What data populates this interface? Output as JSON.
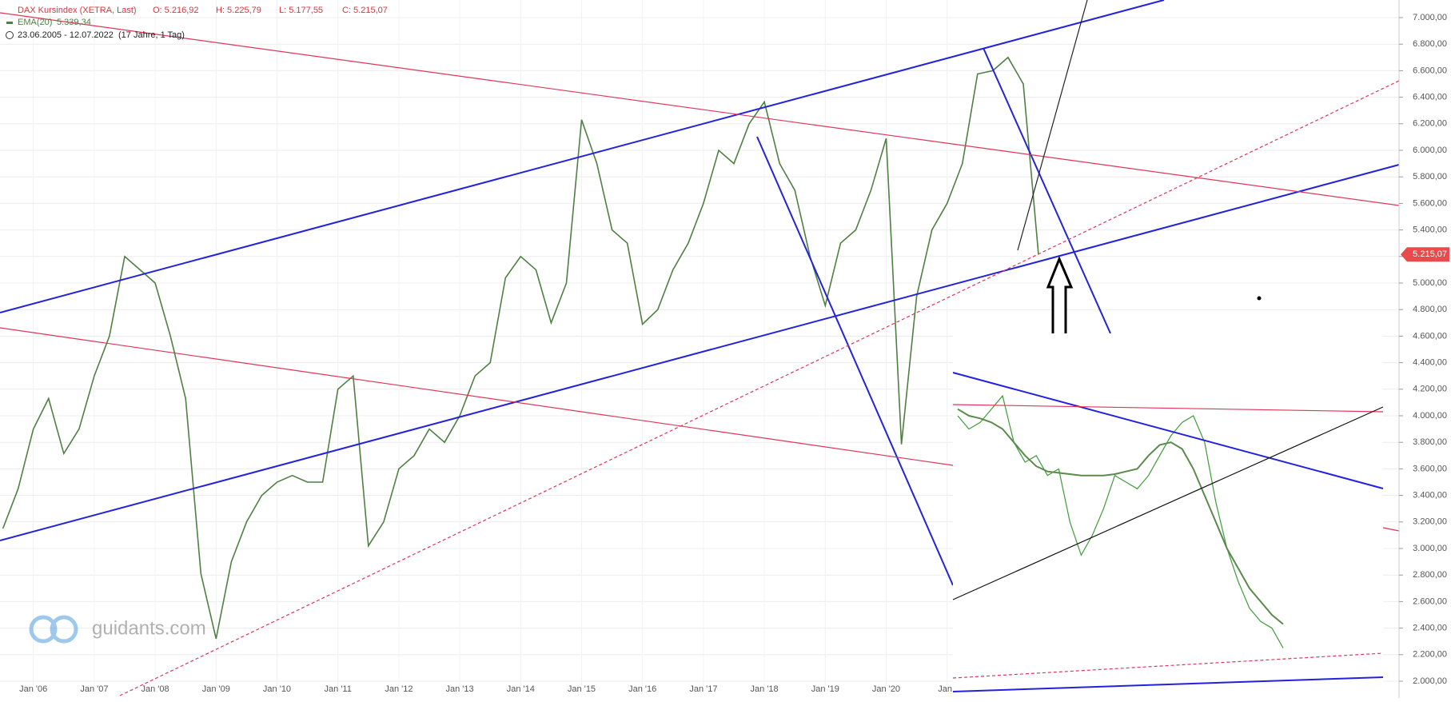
{
  "header": {
    "title": "DAX Kursindex (XETRA, Last)",
    "open": "O: 5.216,92",
    "high": "H: 5.225,79",
    "low": "L: 5.177,55",
    "close": "C: 5.215,07",
    "ema_name": "EMA(20)",
    "ema_value": "5.339,34",
    "range": "23.06.2005 - 12.07.2022",
    "span": "(17 Jahre, 1 Tag)"
  },
  "watermark": "guidants.com",
  "price_tag": {
    "value": 5215.07,
    "label": "5.215,07"
  },
  "chart_data": {
    "type": "line",
    "categories": [
      null,
      null,
      "Jan '06",
      null,
      null,
      null,
      "Jan '07",
      null,
      null,
      null,
      "Jan '08",
      null,
      null,
      null,
      "Jan '09",
      null,
      null,
      null,
      "Jan '10",
      null,
      null,
      null,
      "Jan '11",
      null,
      null,
      null,
      "Jan '12",
      null,
      null,
      null,
      "Jan '13",
      null,
      null,
      null,
      "Jan '14",
      null,
      null,
      null,
      "Jan '15",
      null,
      null,
      null,
      "Jan '16",
      null,
      null,
      null,
      "Jan '17",
      null,
      null,
      null,
      "Jan '18",
      null,
      null,
      null,
      "Jan '19",
      null,
      null,
      null,
      "Jan '20",
      null,
      null,
      null,
      "Jan '",
      null,
      null,
      null,
      null,
      null,
      null
    ],
    "series": [
      {
        "name": "DAX Kursindex (XETRA, Last)",
        "color": "#4f7f43",
        "values": [
          3150,
          3450,
          3900,
          4130,
          3715,
          3900,
          4300,
          4600,
          5200,
          5100,
          5000,
          4600,
          4130,
          2810,
          2320,
          2900,
          3200,
          3400,
          3500,
          3550,
          3500,
          3500,
          4200,
          4300,
          3020,
          3200,
          3600,
          3700,
          3900,
          3800,
          4000,
          4300,
          4400,
          5040,
          5200,
          5100,
          4700,
          5000,
          6230,
          5900,
          5400,
          5300,
          4690,
          4800,
          5100,
          5300,
          5600,
          6000,
          5900,
          6200,
          6365,
          5900,
          5700,
          5200,
          4830,
          5300,
          5400,
          5700,
          6090,
          3785,
          4900,
          5400,
          5600,
          5900,
          6575,
          6600,
          6700,
          6500,
          5215
        ]
      }
    ],
    "ylim": [
      2000,
      7000
    ],
    "yticks": [
      {
        "value": 7000,
        "label": "7.000,00"
      },
      {
        "value": 6800,
        "label": "6.800,00"
      },
      {
        "value": 6600,
        "label": "6.600,00"
      },
      {
        "value": 6400,
        "label": "6.400,00"
      },
      {
        "value": 6200,
        "label": "6.200,00"
      },
      {
        "value": 6000,
        "label": "6.000,00"
      },
      {
        "value": 5800,
        "label": "5.800,00"
      },
      {
        "value": 5600,
        "label": "5.600,00"
      },
      {
        "value": 5400,
        "label": "5.400,00"
      },
      {
        "value": 5200,
        "label": "5.200,00"
      },
      {
        "value": 5000,
        "label": "5.000,00"
      },
      {
        "value": 4800,
        "label": "4.800,00"
      },
      {
        "value": 4600,
        "label": "4.600,00"
      },
      {
        "value": 4400,
        "label": "4.400,00"
      },
      {
        "value": 4200,
        "label": "4.200,00"
      },
      {
        "value": 4000,
        "label": "4.000,00"
      },
      {
        "value": 3800,
        "label": "3.800,00"
      },
      {
        "value": 3600,
        "label": "3.600,00"
      },
      {
        "value": 3400,
        "label": "3.400,00"
      },
      {
        "value": 3200,
        "label": "3.200,00"
      },
      {
        "value": 3000,
        "label": "3.000,00"
      },
      {
        "value": 2800,
        "label": "2.800,00"
      },
      {
        "value": 2600,
        "label": "2.600,00"
      },
      {
        "value": 2400,
        "label": "2.400,00"
      },
      {
        "value": 2200,
        "label": "2.200,00"
      },
      {
        "value": 2000,
        "label": "2.000,00"
      }
    ],
    "grid": true
  },
  "inset": {
    "series": [
      {
        "color": "#3f9a3a",
        "values": [
          4000,
          3900,
          3950,
          4050,
          4150,
          3800,
          3650,
          3700,
          3550,
          3600,
          3200,
          2950,
          3100,
          3300,
          3550,
          3500,
          3450,
          3550,
          3700,
          3850,
          3950,
          4000,
          3800,
          3350,
          3000,
          2750,
          2550,
          2450,
          2400,
          2250
        ]
      },
      {
        "color": "#5b8a4c",
        "values": [
          4050,
          4000,
          3980,
          3950,
          3900,
          3800,
          3700,
          3620,
          3580,
          3570,
          3560,
          3550,
          3550,
          3550,
          3560,
          3580,
          3600,
          3700,
          3780,
          3800,
          3750,
          3600,
          3400,
          3200,
          3000,
          2850,
          2700,
          2600,
          2500,
          2430
        ]
      }
    ]
  }
}
